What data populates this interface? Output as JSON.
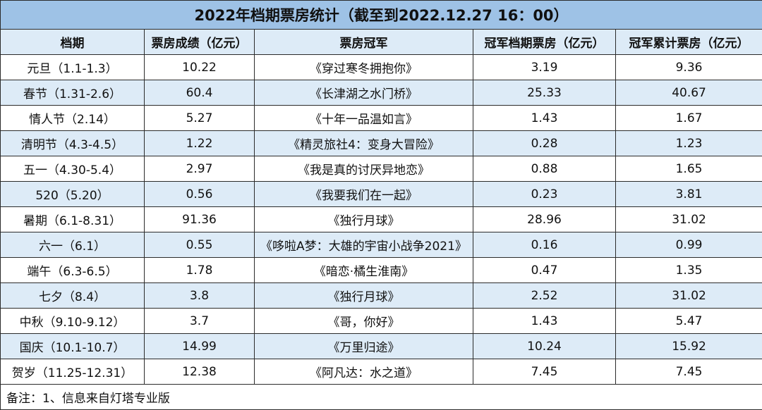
{
  "title": "2022年档期票房统计（截至到2022.12.27  16：00）",
  "columns": [
    "档期",
    "票房成绩（亿元）",
    "票房冠军",
    "冠军档期票房（亿元）",
    "冠军累计票房（亿元）"
  ],
  "rows": [
    {
      "period": "元旦（1.1-1.3）",
      "box_office": "10.22",
      "champion": "《穿过寒冬拥抱你》",
      "champion_period": "3.19",
      "champion_total": "9.36"
    },
    {
      "period": "春节（1.31-2.6）",
      "box_office": "60.4",
      "champion": "《长津湖之水门桥》",
      "champion_period": "25.33",
      "champion_total": "40.67"
    },
    {
      "period": "情人节（2.14）",
      "box_office": "5.27",
      "champion": "《十年一品温如言》",
      "champion_period": "1.43",
      "champion_total": "1.67"
    },
    {
      "period": "清明节（4.3-4.5）",
      "box_office": "1.22",
      "champion": "《精灵旅社4：变身大冒险》",
      "champion_period": "0.28",
      "champion_total": "1.23"
    },
    {
      "period": "五一（4.30-5.4）",
      "box_office": "2.97",
      "champion": "《我是真的讨厌异地恋》",
      "champion_period": "0.88",
      "champion_total": "1.65"
    },
    {
      "period": "520（5.20）",
      "box_office": "0.56",
      "champion": "《我要我们在一起》",
      "champion_period": "0.23",
      "champion_total": "3.81"
    },
    {
      "period": "暑期（6.1-8.31）",
      "box_office": "91.36",
      "champion": "《独行月球》",
      "champion_period": "28.96",
      "champion_total": "31.02"
    },
    {
      "period": "六一（6.1）",
      "box_office": "0.55",
      "champion": "《哆啦A梦：大雄的宇宙小战争2021》",
      "champion_period": "0.16",
      "champion_total": "0.99"
    },
    {
      "period": "端午（6.3-6.5）",
      "box_office": "1.78",
      "champion": "《暗恋·橘生淮南》",
      "champion_period": "0.47",
      "champion_total": "1.35"
    },
    {
      "period": "七夕（8.4）",
      "box_office": "3.8",
      "champion": "《独行月球》",
      "champion_period": "2.52",
      "champion_total": "31.02"
    },
    {
      "period": "中秋（9.10-9.12）",
      "box_office": "3.7",
      "champion": "《哥，你好》",
      "champion_period": "1.43",
      "champion_total": "5.47"
    },
    {
      "period": "国庆（10.1-10.7）",
      "box_office": "14.99",
      "champion": "《万里归途》",
      "champion_period": "10.24",
      "champion_total": "15.92"
    },
    {
      "period": "贺岁（11.25-12.31）",
      "box_office": "12.38",
      "champion": "《阿凡达：水之道》",
      "champion_period": "7.45",
      "champion_total": "7.45"
    }
  ],
  "note": "备注：1、信息来自灯塔专业版",
  "colors": {
    "title_bg": "#9ec2e6",
    "header_bg": "#ddebf7",
    "alt_row_bg": "#ddebf7",
    "border": "#2b2b2b"
  }
}
